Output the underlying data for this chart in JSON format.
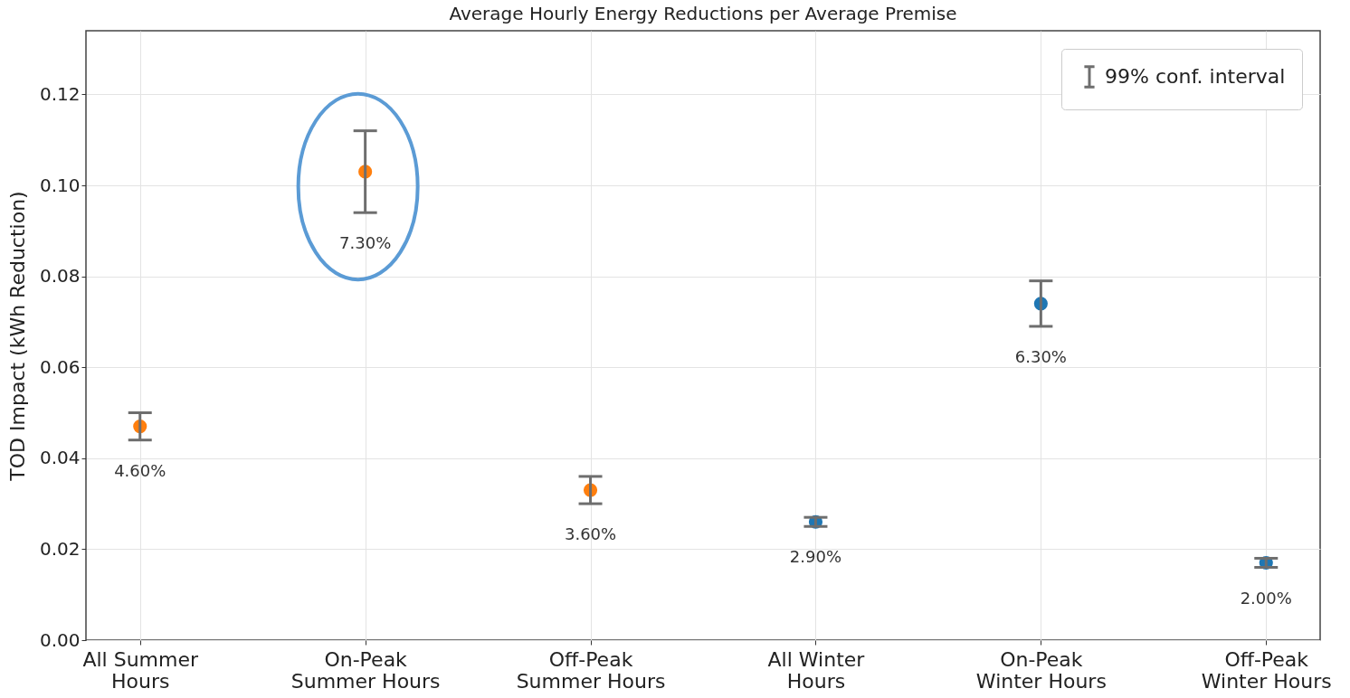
{
  "chart_data": {
    "type": "scatter",
    "title": "Average Hourly Energy Reductions per Average Premise",
    "ylabel": "TOD Impact (kWh Reduction)",
    "categories": [
      "All Summer\nHours",
      "On-Peak\nSummer Hours",
      "Off-Peak\nSummer Hours",
      "All Winter\nHours",
      "On-Peak\nWinter Hours",
      "Off-Peak\nWinter Hours"
    ],
    "series": [
      {
        "name": "99% conf. interval",
        "color": "#6e6e6e",
        "colors": [
          "#ff7f0e",
          "#ff7f0e",
          "#ff7f0e",
          "#1f77b4",
          "#1f77b4",
          "#1f77b4"
        ],
        "values": [
          0.047,
          0.103,
          0.033,
          0.026,
          0.074,
          0.017
        ],
        "errors": [
          [
            0.044,
            0.05
          ],
          [
            0.094,
            0.112
          ],
          [
            0.03,
            0.036
          ],
          [
            0.025,
            0.027
          ],
          [
            0.069,
            0.079
          ],
          [
            0.016,
            0.018
          ]
        ]
      }
    ],
    "annotations": [
      "4.60%",
      "7.30%",
      "3.60%",
      "2.90%",
      "6.30%",
      "2.00%"
    ],
    "ylim": [
      0,
      0.134
    ],
    "yticks": [
      {
        "value": 0,
        "label": "0.00"
      },
      0.02,
      0.04,
      0.06,
      0.08,
      {
        "value": 0.1,
        "label": "0.10"
      },
      0.12
    ],
    "grid": true,
    "legend": "top right",
    "marker": "circle"
  }
}
